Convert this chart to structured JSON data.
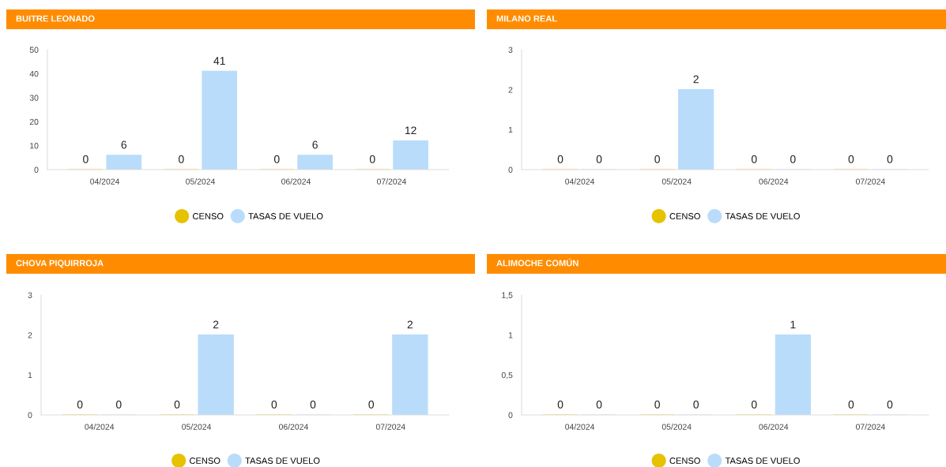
{
  "chart_data": [
    {
      "type": "bar",
      "title": "BUITRE LEONADO",
      "categories": [
        "04/2024",
        "05/2024",
        "06/2024",
        "07/2024"
      ],
      "series": [
        {
          "name": "CENSO",
          "color": "#e6c200",
          "values": [
            0,
            0,
            0,
            0
          ]
        },
        {
          "name": "TASAS DE VUELO",
          "color": "#b9dcfb",
          "values": [
            6,
            41,
            6,
            12
          ]
        }
      ],
      "ylim": [
        0,
        50
      ],
      "yticks": [
        0,
        10,
        20,
        30,
        40,
        50
      ],
      "data_labels": true,
      "legend": "bottom",
      "grid": false
    },
    {
      "type": "bar",
      "title": "MILANO REAL",
      "categories": [
        "04/2024",
        "05/2024",
        "06/2024",
        "07/2024"
      ],
      "series": [
        {
          "name": "CENSO",
          "color": "#e6c200",
          "values": [
            0,
            0,
            0,
            0
          ]
        },
        {
          "name": "TASAS DE VUELO",
          "color": "#b9dcfb",
          "values": [
            0,
            2,
            0,
            0
          ]
        }
      ],
      "ylim": [
        0,
        3
      ],
      "yticks": [
        0,
        1,
        2,
        3
      ],
      "data_labels": true,
      "legend": "bottom",
      "grid": false
    },
    {
      "type": "bar",
      "title": "CHOVA PIQUIRROJA",
      "categories": [
        "04/2024",
        "05/2024",
        "06/2024",
        "07/2024"
      ],
      "series": [
        {
          "name": "CENSO",
          "color": "#e6c200",
          "values": [
            0,
            0,
            0,
            0
          ]
        },
        {
          "name": "TASAS DE VUELO",
          "color": "#b9dcfb",
          "values": [
            0,
            2,
            0,
            2
          ]
        }
      ],
      "ylim": [
        0,
        3
      ],
      "yticks": [
        0,
        1,
        2,
        3
      ],
      "data_labels": true,
      "legend": "bottom",
      "grid": false
    },
    {
      "type": "bar",
      "title": "ALIMOCHE COMÚN",
      "categories": [
        "04/2024",
        "05/2024",
        "06/2024",
        "07/2024"
      ],
      "series": [
        {
          "name": "CENSO",
          "color": "#e6c200",
          "values": [
            0,
            0,
            0,
            0
          ]
        },
        {
          "name": "TASAS DE VUELO",
          "color": "#b9dcfb",
          "values": [
            0,
            0,
            1,
            0
          ]
        }
      ],
      "ylim": [
        0,
        1.5
      ],
      "yticks": [
        0,
        {
          "value": 0.5,
          "label": "0,5"
        },
        1,
        {
          "value": 1.5,
          "label": "1,5"
        }
      ],
      "data_labels": true,
      "legend": "bottom",
      "grid": false
    }
  ]
}
